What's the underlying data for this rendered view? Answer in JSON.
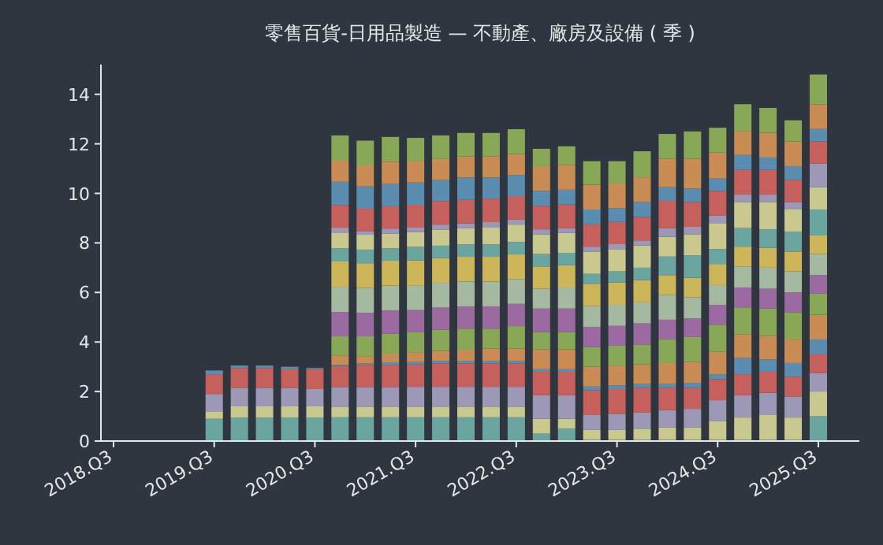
{
  "chart_data": {
    "type": "bar",
    "stacked": true,
    "title": "零售百貨-日用品製造 — 不動產、廠房及設備 ( 季 )",
    "categories": [
      "2018.Q3",
      null,
      null,
      null,
      "2019.Q3",
      null,
      null,
      null,
      "2020.Q3",
      null,
      null,
      null,
      "2021.Q3",
      null,
      null,
      null,
      "2022.Q3",
      null,
      null,
      null,
      "2023.Q3",
      null,
      null,
      null,
      "2024.Q3",
      null,
      null,
      null,
      "2025.Q3"
    ],
    "ylim": [
      0,
      15.2
    ],
    "yticks": [
      0,
      2,
      4,
      6,
      8,
      10,
      12,
      14
    ],
    "grid": false,
    "series": [
      {
        "color": "#6ba5a0",
        "values": [
          null,
          null,
          null,
          null,
          0.9,
          0.95,
          0.95,
          0.95,
          0.95,
          0.96,
          0.96,
          0.96,
          0.96,
          0.96,
          0.96,
          0.96,
          0.96,
          0.3,
          0.5,
          0.05,
          0.05,
          0.05,
          0.05,
          0.05,
          0.05,
          0.05,
          0.05,
          0.05,
          1.0
        ]
      },
      {
        "color": "#c9c98f",
        "values": [
          null,
          null,
          null,
          null,
          0.3,
          0.45,
          0.45,
          0.45,
          0.45,
          0.43,
          0.43,
          0.43,
          0.43,
          0.43,
          0.43,
          0.43,
          0.43,
          0.6,
          0.4,
          0.4,
          0.4,
          0.45,
          0.5,
          0.5,
          0.75,
          0.9,
          1.0,
          0.9,
          1.0
        ]
      },
      {
        "color": "#9d98b5",
        "values": [
          null,
          null,
          null,
          null,
          0.7,
          0.75,
          0.75,
          0.75,
          0.7,
          0.79,
          0.79,
          0.79,
          0.8,
          0.8,
          0.8,
          0.8,
          0.8,
          0.95,
          0.95,
          0.6,
          0.65,
          0.65,
          0.7,
          0.75,
          0.85,
          0.9,
          0.9,
          0.85,
          0.75
        ]
      },
      {
        "color": "#c6605c",
        "values": [
          null,
          null,
          null,
          null,
          0.8,
          0.8,
          0.8,
          0.75,
          0.8,
          0.85,
          0.9,
          0.9,
          0.9,
          0.95,
          0.95,
          0.95,
          0.95,
          0.95,
          0.95,
          1.0,
          1.0,
          1.0,
          0.9,
          0.85,
          0.85,
          0.85,
          0.85,
          0.8,
          0.75
        ]
      },
      {
        "color": "#5b8db0",
        "values": [
          null,
          null,
          null,
          null,
          0.15,
          0.1,
          0.1,
          0.1,
          0.05,
          0.05,
          0.05,
          0.1,
          0.1,
          0.1,
          0.1,
          0.1,
          0.1,
          0.1,
          0.1,
          0.15,
          0.15,
          0.15,
          0.15,
          0.2,
          0.2,
          0.65,
          0.5,
          0.55,
          0.6
        ]
      },
      {
        "color": "#c98c55",
        "values": [
          null,
          null,
          null,
          null,
          null,
          null,
          null,
          null,
          null,
          0.38,
          0.3,
          0.35,
          0.4,
          0.4,
          0.45,
          0.5,
          0.5,
          0.8,
          0.8,
          0.8,
          0.8,
          0.8,
          0.85,
          0.85,
          0.9,
          0.95,
          0.95,
          0.95,
          1.0
        ]
      },
      {
        "color": "#88a858",
        "values": [
          null,
          null,
          null,
          null,
          null,
          null,
          null,
          null,
          null,
          0.77,
          0.8,
          0.8,
          0.8,
          0.85,
          0.85,
          0.8,
          0.9,
          0.7,
          0.7,
          0.8,
          0.8,
          0.8,
          0.95,
          1.0,
          1.1,
          1.1,
          1.1,
          1.1,
          0.85
        ]
      },
      {
        "color": "#9a6aa0",
        "values": [
          null,
          null,
          null,
          null,
          null,
          null,
          null,
          null,
          null,
          0.98,
          0.95,
          0.95,
          0.9,
          0.9,
          0.9,
          0.9,
          0.9,
          0.95,
          0.95,
          0.8,
          0.8,
          0.85,
          0.8,
          0.75,
          0.8,
          0.8,
          0.8,
          0.8,
          0.75
        ]
      },
      {
        "color": "#a5b9a0",
        "values": [
          null,
          null,
          null,
          null,
          null,
          null,
          null,
          null,
          null,
          1.02,
          1.0,
          1.0,
          1.0,
          1.0,
          1.0,
          1.0,
          1.0,
          0.8,
          0.85,
          0.85,
          0.85,
          0.85,
          1.0,
          0.85,
          0.8,
          0.85,
          0.85,
          0.85,
          0.85
        ]
      },
      {
        "color": "#cdb65a",
        "values": [
          null,
          null,
          null,
          null,
          null,
          null,
          null,
          null,
          null,
          1.02,
          1.0,
          1.0,
          1.0,
          1.0,
          1.0,
          1.0,
          1.0,
          0.9,
          0.9,
          0.9,
          0.9,
          0.9,
          0.8,
          0.8,
          0.85,
          0.8,
          0.8,
          0.8,
          0.75
        ]
      },
      {
        "color": "#6ba5a0",
        "values": [
          null,
          null,
          null,
          null,
          null,
          null,
          null,
          null,
          null,
          0.53,
          0.55,
          0.5,
          0.55,
          0.5,
          0.5,
          0.5,
          0.5,
          0.5,
          0.5,
          0.4,
          0.45,
          0.5,
          0.75,
          0.9,
          0.6,
          0.75,
          0.75,
          0.8,
          1.05
        ]
      },
      {
        "color": "#c9c98f",
        "values": [
          null,
          null,
          null,
          null,
          null,
          null,
          null,
          null,
          null,
          0.64,
          0.6,
          0.6,
          0.6,
          0.65,
          0.65,
          0.7,
          0.7,
          0.8,
          0.8,
          0.9,
          0.9,
          0.9,
          0.8,
          0.85,
          1.05,
          1.05,
          1.1,
          0.9,
          0.9
        ]
      },
      {
        "color": "#9d98b5",
        "values": [
          null,
          null,
          null,
          null,
          null,
          null,
          null,
          null,
          null,
          0.2,
          0.15,
          0.2,
          0.2,
          0.2,
          0.2,
          0.2,
          0.2,
          0.2,
          0.2,
          0.2,
          0.2,
          0.2,
          0.35,
          0.3,
          0.3,
          0.3,
          0.3,
          0.3,
          0.95
        ]
      },
      {
        "color": "#c6605c",
        "values": [
          null,
          null,
          null,
          null,
          null,
          null,
          null,
          null,
          null,
          0.91,
          0.9,
          0.9,
          0.9,
          0.95,
          0.95,
          0.95,
          0.95,
          0.95,
          0.95,
          0.9,
          0.9,
          0.95,
          1.1,
          1.0,
          1.0,
          1.0,
          1.0,
          0.9,
          0.9
        ]
      },
      {
        "color": "#5b8db0",
        "values": [
          null,
          null,
          null,
          null,
          null,
          null,
          null,
          null,
          null,
          0.94,
          0.9,
          0.9,
          0.9,
          0.85,
          0.9,
          0.85,
          0.85,
          0.6,
          0.6,
          0.6,
          0.55,
          0.6,
          0.55,
          0.55,
          0.5,
          0.6,
          0.5,
          0.55,
          0.5
        ]
      },
      {
        "color": "#c98c55",
        "values": [
          null,
          null,
          null,
          null,
          null,
          null,
          null,
          null,
          null,
          0.85,
          0.85,
          0.9,
          0.85,
          0.85,
          0.85,
          0.85,
          0.85,
          1.0,
          1.0,
          1.0,
          1.0,
          1.0,
          1.15,
          1.2,
          1.05,
          0.95,
          1.0,
          1.0,
          1.0
        ]
      },
      {
        "color": "#88a858",
        "values": [
          null,
          null,
          null,
          null,
          null,
          null,
          null,
          null,
          null,
          1.02,
          1.0,
          1.0,
          0.95,
          0.95,
          0.95,
          0.95,
          1.0,
          0.7,
          0.75,
          0.95,
          0.9,
          1.05,
          1.0,
          1.1,
          1.0,
          1.1,
          1.0,
          0.85,
          1.2
        ]
      }
    ]
  }
}
